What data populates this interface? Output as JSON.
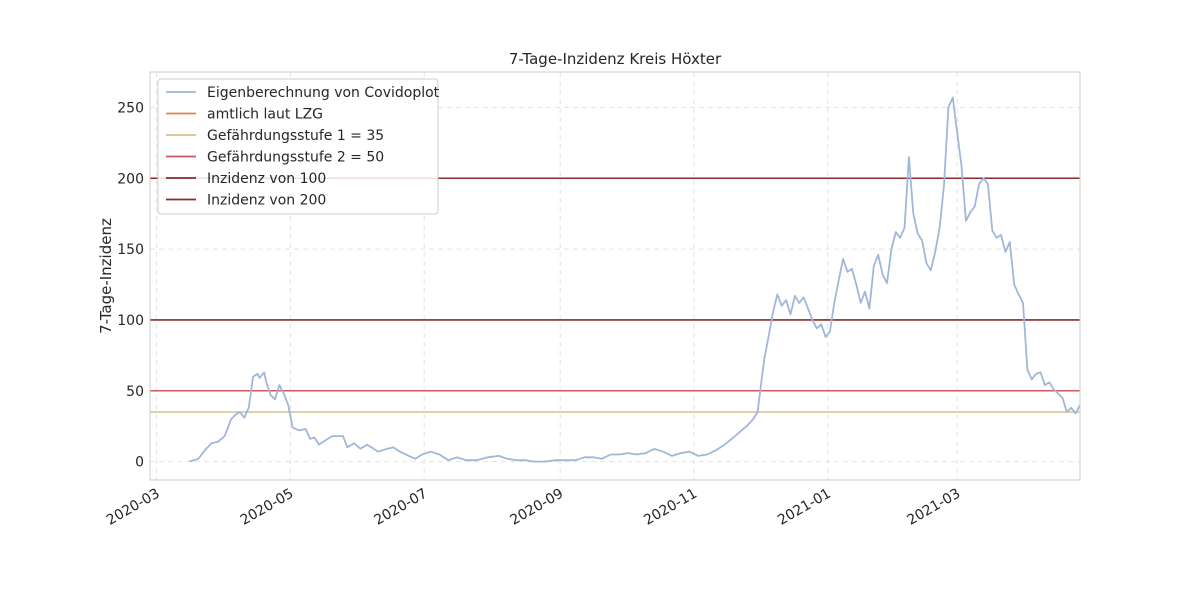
{
  "chart_data": {
    "type": "line",
    "title": "7-Tage-Inzidenz Kreis Höxter",
    "xlabel": "",
    "ylabel": "7-Tage-Inzidenz",
    "xlim": [
      "2020-02-27",
      "2021-04-26"
    ],
    "ylim": [
      -13,
      275
    ],
    "grid": true,
    "legend_placement": "top-left",
    "x_ticks": [
      "2020-03",
      "2020-05",
      "2020-07",
      "2020-09",
      "2020-11",
      "2021-01",
      "2021-03"
    ],
    "x_tick_dates": [
      "2020-03-01",
      "2020-05-01",
      "2020-07-01",
      "2020-09-01",
      "2020-11-01",
      "2021-01-01",
      "2021-03-01"
    ],
    "y_ticks": [
      0,
      50,
      100,
      150,
      200,
      250
    ],
    "y_tick_labels": [
      "0",
      "50",
      "100",
      "150",
      "200",
      "250"
    ],
    "colors": {
      "eigen": "#a1b7d8",
      "lzg": "#dd8452",
      "stufe1": "#d3c18b",
      "stufe2": "#c85a5f",
      "inz100": "#8b2a2a",
      "inz200": "#8b2a2a",
      "grid": "#e3e3e3",
      "frame": "#cccccc"
    },
    "series": [
      {
        "name": "Eigenberechnung von Covidoplot",
        "key": "eigen",
        "points": [
          [
            "2020-03-16",
            0
          ],
          [
            "2020-03-20",
            2
          ],
          [
            "2020-03-23",
            8
          ],
          [
            "2020-03-26",
            13
          ],
          [
            "2020-03-29",
            14
          ],
          [
            "2020-04-01",
            18
          ],
          [
            "2020-04-04",
            30
          ],
          [
            "2020-04-06",
            33
          ],
          [
            "2020-04-08",
            35
          ],
          [
            "2020-04-10",
            31
          ],
          [
            "2020-04-12",
            38
          ],
          [
            "2020-04-14",
            60
          ],
          [
            "2020-04-16",
            62
          ],
          [
            "2020-04-17",
            59
          ],
          [
            "2020-04-19",
            63
          ],
          [
            "2020-04-20",
            56
          ],
          [
            "2020-04-22",
            47
          ],
          [
            "2020-04-24",
            44
          ],
          [
            "2020-04-26",
            54
          ],
          [
            "2020-04-28",
            48
          ],
          [
            "2020-04-30",
            40
          ],
          [
            "2020-05-02",
            24
          ],
          [
            "2020-05-05",
            22
          ],
          [
            "2020-05-08",
            23
          ],
          [
            "2020-05-10",
            16
          ],
          [
            "2020-05-12",
            17
          ],
          [
            "2020-05-14",
            12
          ],
          [
            "2020-05-17",
            15
          ],
          [
            "2020-05-20",
            18
          ],
          [
            "2020-05-25",
            18
          ],
          [
            "2020-05-27",
            10
          ],
          [
            "2020-05-30",
            13
          ],
          [
            "2020-06-02",
            9
          ],
          [
            "2020-06-05",
            12
          ],
          [
            "2020-06-07",
            10
          ],
          [
            "2020-06-10",
            7
          ],
          [
            "2020-06-14",
            9
          ],
          [
            "2020-06-17",
            10
          ],
          [
            "2020-06-20",
            7
          ],
          [
            "2020-06-24",
            4
          ],
          [
            "2020-06-27",
            2
          ],
          [
            "2020-06-30",
            5
          ],
          [
            "2020-07-04",
            7
          ],
          [
            "2020-07-08",
            5
          ],
          [
            "2020-07-12",
            1
          ],
          [
            "2020-07-16",
            3
          ],
          [
            "2020-07-20",
            1
          ],
          [
            "2020-07-25",
            1
          ],
          [
            "2020-07-30",
            3
          ],
          [
            "2020-08-04",
            4
          ],
          [
            "2020-08-08",
            2
          ],
          [
            "2020-08-12",
            1
          ],
          [
            "2020-08-16",
            1
          ],
          [
            "2020-08-20",
            0
          ],
          [
            "2020-08-25",
            0
          ],
          [
            "2020-08-30",
            1
          ],
          [
            "2020-09-04",
            1
          ],
          [
            "2020-09-08",
            1
          ],
          [
            "2020-09-12",
            3
          ],
          [
            "2020-09-16",
            3
          ],
          [
            "2020-09-20",
            2
          ],
          [
            "2020-09-24",
            5
          ],
          [
            "2020-09-28",
            5
          ],
          [
            "2020-10-02",
            6
          ],
          [
            "2020-10-06",
            5
          ],
          [
            "2020-10-10",
            6
          ],
          [
            "2020-10-14",
            9
          ],
          [
            "2020-10-18",
            7
          ],
          [
            "2020-10-22",
            4
          ],
          [
            "2020-10-26",
            6
          ],
          [
            "2020-10-30",
            7
          ],
          [
            "2020-11-03",
            4
          ],
          [
            "2020-11-07",
            5
          ],
          [
            "2020-11-11",
            8
          ],
          [
            "2020-11-15",
            12
          ],
          [
            "2020-11-19",
            17
          ],
          [
            "2020-11-22",
            21
          ],
          [
            "2020-11-25",
            25
          ],
          [
            "2020-11-28",
            30
          ],
          [
            "2020-11-30",
            35
          ],
          [
            "2020-12-02",
            60
          ],
          [
            "2020-12-03",
            72
          ],
          [
            "2020-12-05",
            88
          ],
          [
            "2020-12-07",
            105
          ],
          [
            "2020-12-09",
            118
          ],
          [
            "2020-12-11",
            110
          ],
          [
            "2020-12-13",
            114
          ],
          [
            "2020-12-15",
            104
          ],
          [
            "2020-12-17",
            117
          ],
          [
            "2020-12-19",
            112
          ],
          [
            "2020-12-21",
            116
          ],
          [
            "2020-12-23",
            108
          ],
          [
            "2020-12-25",
            100
          ],
          [
            "2020-12-27",
            94
          ],
          [
            "2020-12-29",
            97
          ],
          [
            "2020-12-31",
            88
          ],
          [
            "2021-01-02",
            92
          ],
          [
            "2021-01-04",
            112
          ],
          [
            "2021-01-06",
            128
          ],
          [
            "2021-01-08",
            143
          ],
          [
            "2021-01-10",
            134
          ],
          [
            "2021-01-12",
            136
          ],
          [
            "2021-01-14",
            125
          ],
          [
            "2021-01-16",
            112
          ],
          [
            "2021-01-18",
            120
          ],
          [
            "2021-01-20",
            108
          ],
          [
            "2021-01-22",
            138
          ],
          [
            "2021-01-24",
            146
          ],
          [
            "2021-01-26",
            132
          ],
          [
            "2021-01-28",
            126
          ],
          [
            "2021-01-30",
            150
          ],
          [
            "2021-02-01",
            162
          ],
          [
            "2021-02-03",
            158
          ],
          [
            "2021-02-05",
            165
          ],
          [
            "2021-02-07",
            215
          ],
          [
            "2021-02-09",
            175
          ],
          [
            "2021-02-11",
            161
          ],
          [
            "2021-02-13",
            156
          ],
          [
            "2021-02-15",
            140
          ],
          [
            "2021-02-17",
            135
          ],
          [
            "2021-02-19",
            148
          ],
          [
            "2021-02-21",
            165
          ],
          [
            "2021-02-23",
            195
          ],
          [
            "2021-02-25",
            250
          ],
          [
            "2021-02-27",
            257
          ],
          [
            "2021-03-01",
            232
          ],
          [
            "2021-03-03",
            208
          ],
          [
            "2021-03-05",
            170
          ],
          [
            "2021-03-07",
            176
          ],
          [
            "2021-03-09",
            180
          ],
          [
            "2021-03-11",
            196
          ],
          [
            "2021-03-13",
            200
          ],
          [
            "2021-03-15",
            196
          ],
          [
            "2021-03-17",
            163
          ],
          [
            "2021-03-19",
            158
          ],
          [
            "2021-03-21",
            160
          ],
          [
            "2021-03-23",
            148
          ],
          [
            "2021-03-25",
            155
          ],
          [
            "2021-03-27",
            125
          ],
          [
            "2021-03-29",
            118
          ],
          [
            "2021-03-31",
            112
          ],
          [
            "2021-04-02",
            65
          ],
          [
            "2021-04-04",
            58
          ],
          [
            "2021-04-06",
            62
          ],
          [
            "2021-04-08",
            63
          ],
          [
            "2021-04-10",
            54
          ],
          [
            "2021-04-12",
            56
          ],
          [
            "2021-04-14",
            51
          ],
          [
            "2021-04-16",
            48
          ],
          [
            "2021-04-18",
            45
          ],
          [
            "2021-04-20",
            35
          ],
          [
            "2021-04-22",
            38
          ],
          [
            "2021-04-24",
            34
          ],
          [
            "2021-04-26",
            40
          ]
        ]
      },
      {
        "name": "amtlich laut LZG",
        "key": "lzg",
        "points": []
      }
    ],
    "hlines": [
      {
        "name": "Gefährdungsstufe 1 = 35",
        "key": "stufe1",
        "y": 35
      },
      {
        "name": "Gefährdungsstufe 2 = 50",
        "key": "stufe2",
        "y": 50
      },
      {
        "name": "Inzidenz von 100",
        "key": "inz100",
        "y": 100
      },
      {
        "name": "Inzidenz von 200",
        "key": "inz200",
        "y": 200
      }
    ]
  }
}
